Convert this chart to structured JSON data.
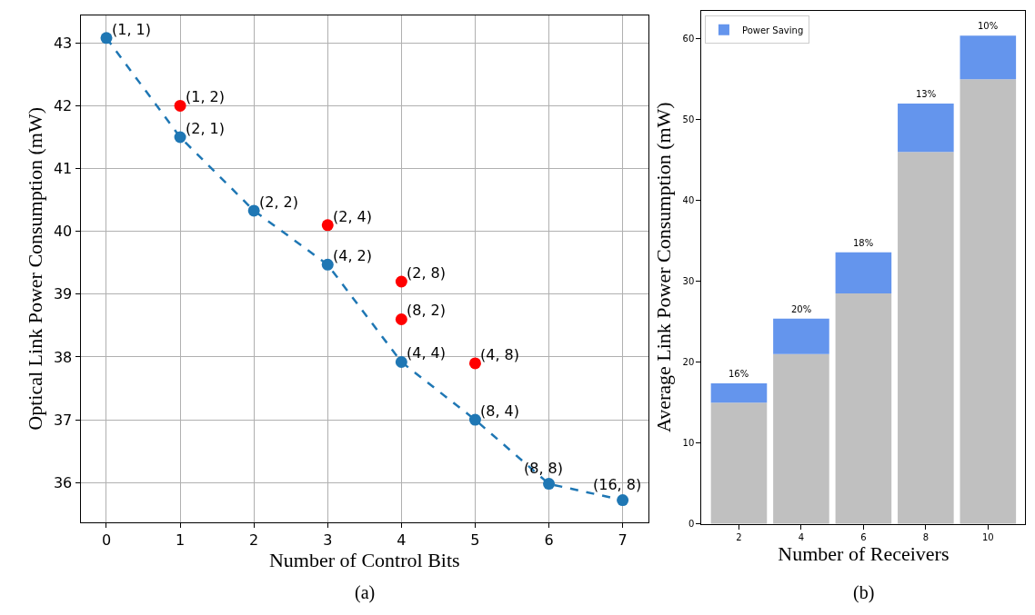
{
  "chart_data": [
    {
      "type": "line",
      "xlabel": "Number of Control Bits",
      "ylabel": "Optical Link Power Consumption (mW)",
      "x": [
        0,
        1,
        2,
        3,
        4,
        5,
        6,
        7
      ],
      "series": [
        {
          "color": "#1f77b4",
          "values": [
            43.08,
            41.5,
            40.33,
            39.47,
            37.92,
            37.0,
            35.98,
            35.72
          ],
          "line_style": "dashed",
          "marker": "circle"
        },
        {
          "type": "scatter",
          "color": "#ff0000",
          "x": [
            1,
            3,
            4,
            4,
            5
          ],
          "values": [
            42.0,
            40.1,
            39.2,
            38.6,
            37.9
          ],
          "marker": "circle"
        }
      ],
      "xlim": [
        -0.35,
        7.35
      ],
      "ylim": [
        35.37,
        43.44
      ],
      "xticks": [
        0,
        1,
        2,
        3,
        4,
        5,
        6,
        7
      ],
      "yticks": [
        36,
        37,
        38,
        39,
        40,
        41,
        42,
        43
      ],
      "grid": true,
      "legend": false,
      "annotations": [
        {
          "text": "(1, 1)",
          "x": 0,
          "y": 43.08
        },
        {
          "text": "(2, 1)",
          "x": 1,
          "y": 41.5
        },
        {
          "text": "(2, 2)",
          "x": 2,
          "y": 40.33
        },
        {
          "text": "(4, 2)",
          "x": 3,
          "y": 39.47
        },
        {
          "text": "(4, 4)",
          "x": 4,
          "y": 37.92
        },
        {
          "text": "(8, 4)",
          "x": 5,
          "y": 37.0
        },
        {
          "text": "(8, 8)",
          "x": 6,
          "y": 35.98
        },
        {
          "text": "(16, 8)",
          "x": 7,
          "y": 35.72
        },
        {
          "text": "(1, 2)",
          "x": 1,
          "y": 42.0
        },
        {
          "text": "(2, 4)",
          "x": 3,
          "y": 40.1
        },
        {
          "text": "(2, 8)",
          "x": 4,
          "y": 39.2
        },
        {
          "text": "(8, 2)",
          "x": 4,
          "y": 38.6
        },
        {
          "text": "(4, 8)",
          "x": 5,
          "y": 37.9
        },
        "(a)"
      ]
    },
    {
      "type": "bar",
      "stacked": true,
      "xlabel": "Number of Receivers",
      "ylabel": "Average Link Power Consumption (mW)",
      "categories": [
        "2",
        "4",
        "6",
        "8",
        "10"
      ],
      "series": [
        {
          "color": "#c0c0c0",
          "values": [
            15,
            21,
            28.5,
            46,
            55
          ]
        },
        {
          "name": "Power Saving",
          "color": "#6495ed",
          "values": [
            2.4,
            4.4,
            5.1,
            6,
            5.4
          ]
        }
      ],
      "ylim": [
        0,
        63.5
      ],
      "yticks": [
        0,
        10,
        20,
        30,
        40,
        50,
        60
      ],
      "grid": false,
      "legend": "top left",
      "annotations": [
        {
          "text": "16%",
          "x": "2",
          "y": 17.4
        },
        {
          "text": "20%",
          "x": "4",
          "y": 25.4
        },
        {
          "text": "18%",
          "x": "6",
          "y": 33.6
        },
        {
          "text": "13%",
          "x": "8",
          "y": 52
        },
        {
          "text": "10%",
          "x": "10",
          "y": 60.4
        },
        "(b)"
      ]
    }
  ]
}
